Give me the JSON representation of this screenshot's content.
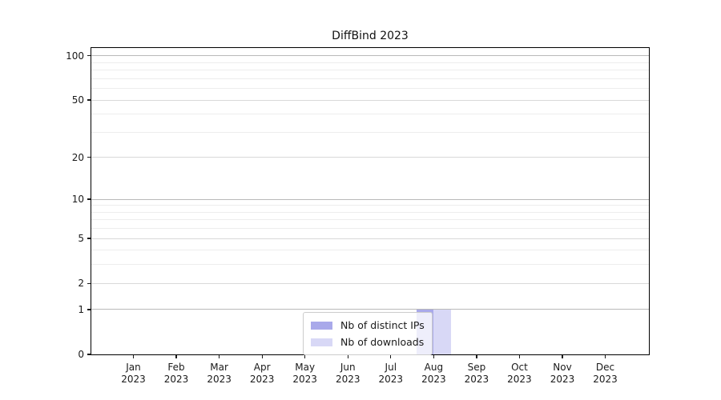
{
  "chart_data": {
    "type": "bar",
    "title": "DiffBind 2023",
    "categories": [
      "Jan",
      "Feb",
      "Mar",
      "Apr",
      "May",
      "Jun",
      "Jul",
      "Aug",
      "Sep",
      "Oct",
      "Nov",
      "Dec"
    ],
    "year": "2023",
    "series": [
      {
        "name": "Nb of distinct IPs",
        "color": "#a9a9ea",
        "values": [
          0,
          0,
          0,
          0,
          0,
          0,
          0,
          1,
          0,
          0,
          0,
          0
        ]
      },
      {
        "name": "Nb of downloads",
        "color": "#d8d8f6",
        "values": [
          0,
          0,
          0,
          0,
          0,
          0,
          0,
          1,
          0,
          0,
          0,
          0
        ]
      }
    ],
    "y_ticks": [
      0,
      1,
      2,
      5,
      10,
      20,
      50,
      100
    ],
    "y_scale": "log10(1+v)",
    "ylim": [
      0,
      113
    ],
    "grid": true,
    "legend_position": "lower center",
    "colors": {
      "grid_major": "#b9b9b9",
      "grid_mid": "#d9d9d9",
      "grid_minor": "#ededed",
      "axis": "#000000"
    }
  }
}
